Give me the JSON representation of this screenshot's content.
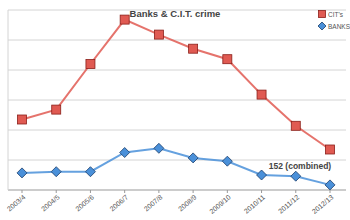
{
  "chart_data": {
    "type": "line",
    "title": "Banks & C.I.T. crime",
    "categories": [
      "2003/4",
      "2004/5",
      "2005/6",
      "2006/7",
      "2007/8",
      "2008/9",
      "2009/10",
      "2010/11",
      "2011/12",
      "2012/13"
    ],
    "series": [
      {
        "name": "CIT's",
        "color": "#e05a52",
        "marker": "square",
        "values": [
          235,
          268,
          420,
          568,
          518,
          471,
          436,
          318,
          214,
          135
        ]
      },
      {
        "name": "BANKS",
        "color": "#4a90d9",
        "marker": "diamond",
        "values": [
          57,
          61,
          61,
          125,
          139,
          107,
          96,
          50,
          46,
          17
        ]
      }
    ],
    "annotation": "152 (combined)",
    "ylim": [
      0,
      600
    ],
    "yticks": [
      0,
      100,
      200,
      300,
      400,
      500,
      600
    ],
    "grid": true,
    "tick_labels": "x",
    "legend": "upper right"
  }
}
